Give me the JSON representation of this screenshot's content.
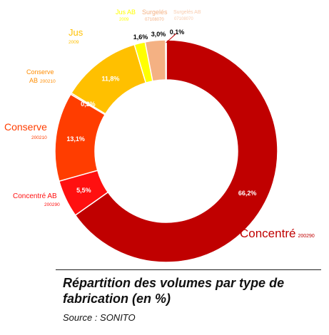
{
  "chart_data": {
    "type": "pie",
    "subtype": "donut",
    "slices": [
      {
        "category": "Concentré",
        "code": "200290",
        "value": 66.2,
        "value_label": "66,2%",
        "color": "#C00000"
      },
      {
        "category": "Concentré AB",
        "code": "200290",
        "value": 5.5,
        "value_label": "5,5%",
        "color": "#FF1010"
      },
      {
        "category": "Conserve",
        "code": "200210",
        "value": 13.1,
        "value_label": "13,1%",
        "color": "#FF3D00"
      },
      {
        "category": "Conserve AB",
        "code": "200210",
        "value": 0.2,
        "value_label": "0,2%",
        "color": "#FF8C00"
      },
      {
        "category": "Jus",
        "code": "2009",
        "value": 11.8,
        "value_label": "11,8%",
        "color": "#FFC000"
      },
      {
        "category": "Jus AB",
        "code": "2009",
        "value": 1.6,
        "value_label": "1,6%",
        "color": "#FFFF00"
      },
      {
        "category": "Surgelés",
        "code": "07108070",
        "value": 3.0,
        "value_label": "3,0%",
        "color": "#F4B183"
      },
      {
        "category": "Surgelés AB",
        "code": "07108070",
        "value": 0.1,
        "value_label": "0,1%",
        "color": "#F8CBAD"
      }
    ],
    "legend": "none",
    "title": "Répartition des volumes par type de fabrication (en %)",
    "source": "Source : SONITO"
  }
}
